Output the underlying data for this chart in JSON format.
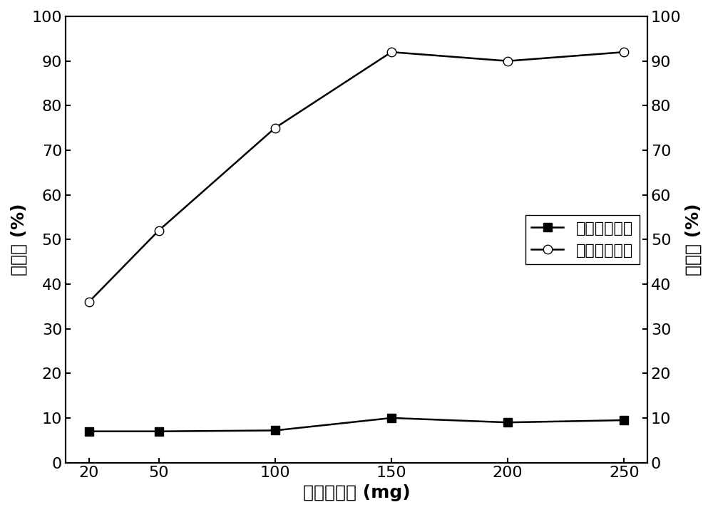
{
  "x": [
    20,
    50,
    100,
    150,
    200,
    250
  ],
  "conversion": [
    7.0,
    7.0,
    7.2,
    10.0,
    9.0,
    9.5
  ],
  "selectivity": [
    36.0,
    52.0,
    75.0,
    92.0,
    90.0,
    92.0
  ],
  "xlabel": "催化剂用量 (mg)",
  "ylabel_left": "转化率 (%)",
  "ylabel_right": "选择性 (%)",
  "legend_conversion": "柠檬烯转化率",
  "legend_selectivity": "香芹酮选择性",
  "xlim": [
    10,
    260
  ],
  "ylim_left": [
    0,
    100
  ],
  "ylim_right": [
    0,
    100
  ],
  "xticks": [
    20,
    50,
    100,
    150,
    200,
    250
  ],
  "yticks": [
    0,
    10,
    20,
    30,
    40,
    50,
    60,
    70,
    80,
    90,
    100
  ],
  "line_color": "#000000",
  "background_color": "#ffffff",
  "font_size_labels": 18,
  "font_size_ticks": 16,
  "font_size_legend": 16
}
